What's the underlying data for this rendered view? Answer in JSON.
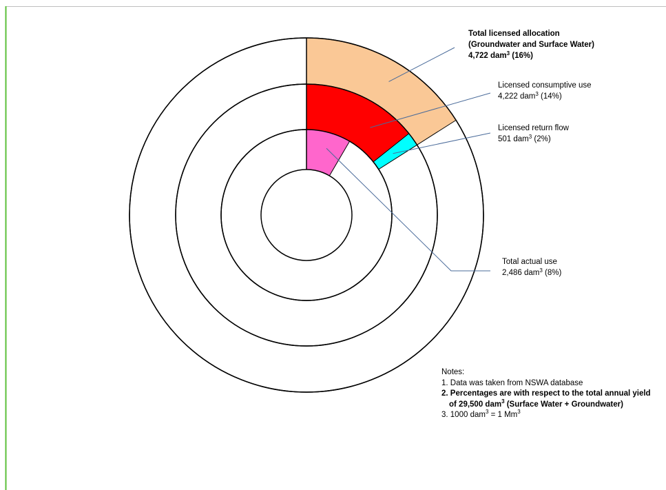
{
  "chart_data": {
    "type": "pie",
    "subtype": "concentric-rings",
    "unit": "dam³",
    "total_annual_yield": 29500,
    "rings": [
      {
        "name": "Total licensed allocation (Groundwater and Surface Water)",
        "value": 4722,
        "percent": 16,
        "color": "#FAC896"
      },
      {
        "name": "Licensed consumptive use",
        "value": 4222,
        "percent": 14,
        "color": "#FF0000"
      },
      {
        "name": "Licensed return flow",
        "value": 501,
        "percent": 2,
        "color": "#00FFFF"
      },
      {
        "name": "Total actual use",
        "value": 2486,
        "percent": 8,
        "color": "#FF66CC"
      }
    ],
    "annotations": [
      {
        "key": "alloc",
        "bold": true,
        "lines": [
          {
            "text": "Total licensed  allocation"
          },
          {
            "text": "(Groundwater and Surface Water)"
          },
          {
            "text": "4,722 dam",
            "sup": "3",
            "after": " (16%)"
          }
        ]
      },
      {
        "key": "consumptive",
        "bold": false,
        "lines": [
          {
            "text": "Licensed  consumptive use"
          },
          {
            "text": "4,222 dam",
            "sup": "3",
            "after": " (14%)"
          }
        ]
      },
      {
        "key": "return",
        "bold": false,
        "lines": [
          {
            "text": "Licensed  return flow"
          },
          {
            "text": "501 dam",
            "sup": "3",
            "after": " (2%)"
          }
        ]
      },
      {
        "key": "actual",
        "bold": false,
        "lines": [
          {
            "text": "Total actual use"
          },
          {
            "text": "2,486 dam",
            "sup": "3",
            "after": " (8%)"
          }
        ]
      }
    ]
  },
  "notes": {
    "title": "Notes:",
    "n1": "1. Data was taken from NSWA database",
    "n2_line1": "2. Percentages are with respect to the total annual yield",
    "n2_line2_a": "of 29,500 dam",
    "n2_line2_sup": "3",
    "n2_line2_b": " (Surface Water + Groundwater)",
    "n3_a": "3. 1000 dam",
    "n3_sup1": "3",
    "n3_b": " = 1 Mm",
    "n3_sup2": "3"
  },
  "colors": {
    "frame_left": "#5BBF3A",
    "frame_top": "#BFBFBF",
    "leader_line": "#4A6B9A"
  }
}
